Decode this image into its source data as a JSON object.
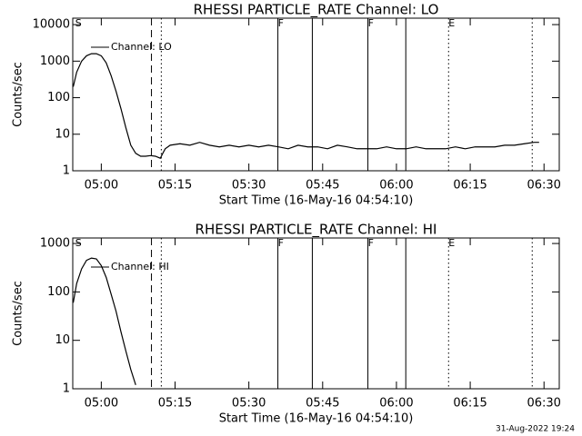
{
  "chart_data": [
    {
      "type": "line",
      "title": "RHESSI PARTICLE_RATE Channel: LO",
      "xlabel": "Start Time (16-May-16 04:54:10)",
      "ylabel": "Counts/sec",
      "log_y": true,
      "legend": "top-left",
      "xlim": [
        294.2,
        393.1
      ],
      "ylim": [
        1,
        15000
      ],
      "xticks": [
        {
          "value": 300,
          "label": "05:00"
        },
        {
          "value": 315,
          "label": "05:15"
        },
        {
          "value": 330,
          "label": "05:30"
        },
        {
          "value": 345,
          "label": "05:45"
        },
        {
          "value": 360,
          "label": "06:00"
        },
        {
          "value": 375,
          "label": "06:15"
        },
        {
          "value": 390,
          "label": "06:30"
        }
      ],
      "yticks": [
        1,
        10,
        100,
        1000,
        10000
      ],
      "vlines": [
        {
          "x": 310.2,
          "style": "dashed"
        },
        {
          "x": 312.2,
          "style": "dotted"
        },
        {
          "x": 335.9,
          "style": "solid"
        },
        {
          "x": 342.9,
          "style": "solid"
        },
        {
          "x": 354.2,
          "style": "solid"
        },
        {
          "x": 361.9,
          "style": "solid"
        },
        {
          "x": 370.6,
          "style": "dotted"
        },
        {
          "x": 387.6,
          "style": "dotted"
        }
      ],
      "flags": [
        {
          "x": 294.7,
          "label": "S"
        },
        {
          "x": 335.9,
          "label": "F"
        },
        {
          "x": 354.2,
          "label": "F"
        },
        {
          "x": 370.6,
          "label": "E"
        }
      ],
      "series": [
        {
          "name": "Channel: LO",
          "color": "#000000",
          "x": [
            294.3,
            295,
            296,
            297,
            298,
            299,
            300,
            301,
            302,
            303,
            304,
            305,
            306,
            307,
            308,
            309,
            310,
            311,
            312,
            312.5,
            313,
            314,
            316,
            318,
            320,
            322,
            324,
            326,
            328,
            330,
            332,
            334,
            336,
            338,
            340,
            342,
            344,
            346,
            348,
            350,
            352,
            354,
            356,
            358,
            360,
            362,
            364,
            366,
            368,
            370,
            372,
            374,
            376,
            378,
            380,
            382,
            384,
            386,
            388,
            389
          ],
          "values": [
            200,
            500,
            1000,
            1400,
            1600,
            1600,
            1400,
            900,
            400,
            150,
            50,
            15,
            5,
            3,
            2.5,
            2.5,
            2.6,
            2.5,
            2.2,
            3,
            4,
            5,
            5.5,
            5,
            6,
            5,
            4.5,
            5,
            4.5,
            5,
            4.5,
            5,
            4.5,
            4,
            5,
            4.5,
            4.5,
            4,
            5,
            4.5,
            4,
            4,
            4,
            4.5,
            4,
            4,
            4.5,
            4,
            4,
            4,
            4.5,
            4,
            4.5,
            4.5,
            4.5,
            5,
            5,
            5.5,
            6,
            6
          ]
        }
      ]
    },
    {
      "type": "line",
      "title": "RHESSI PARTICLE_RATE Channel: HI",
      "xlabel": "Start Time (16-May-16 04:54:10)",
      "ylabel": "Counts/sec",
      "log_y": true,
      "legend": "top-left",
      "xlim": [
        294.2,
        393.1
      ],
      "ylim": [
        1,
        1300
      ],
      "xticks": [
        {
          "value": 300,
          "label": "05:00"
        },
        {
          "value": 315,
          "label": "05:15"
        },
        {
          "value": 330,
          "label": "05:30"
        },
        {
          "value": 345,
          "label": "05:45"
        },
        {
          "value": 360,
          "label": "06:00"
        },
        {
          "value": 375,
          "label": "06:15"
        },
        {
          "value": 390,
          "label": "06:30"
        }
      ],
      "yticks": [
        1,
        10,
        100,
        1000
      ],
      "vlines": [
        {
          "x": 310.2,
          "style": "dashed"
        },
        {
          "x": 312.2,
          "style": "dotted"
        },
        {
          "x": 335.9,
          "style": "solid"
        },
        {
          "x": 342.9,
          "style": "solid"
        },
        {
          "x": 354.2,
          "style": "solid"
        },
        {
          "x": 361.9,
          "style": "solid"
        },
        {
          "x": 370.6,
          "style": "dotted"
        },
        {
          "x": 387.6,
          "style": "dotted"
        }
      ],
      "flags": [
        {
          "x": 294.7,
          "label": "S"
        },
        {
          "x": 335.9,
          "label": "F"
        },
        {
          "x": 354.2,
          "label": "F"
        },
        {
          "x": 370.6,
          "label": "E"
        }
      ],
      "series": [
        {
          "name": "Channel: HI",
          "color": "#000000",
          "x": [
            294.3,
            295,
            296,
            297,
            298,
            299,
            300,
            301,
            302,
            303,
            304,
            305,
            306,
            307
          ],
          "values": [
            60,
            150,
            300,
            450,
            500,
            480,
            350,
            200,
            90,
            40,
            15,
            6,
            2.5,
            1.2
          ]
        }
      ]
    }
  ],
  "timestamp": "31-Aug-2022 19:24"
}
